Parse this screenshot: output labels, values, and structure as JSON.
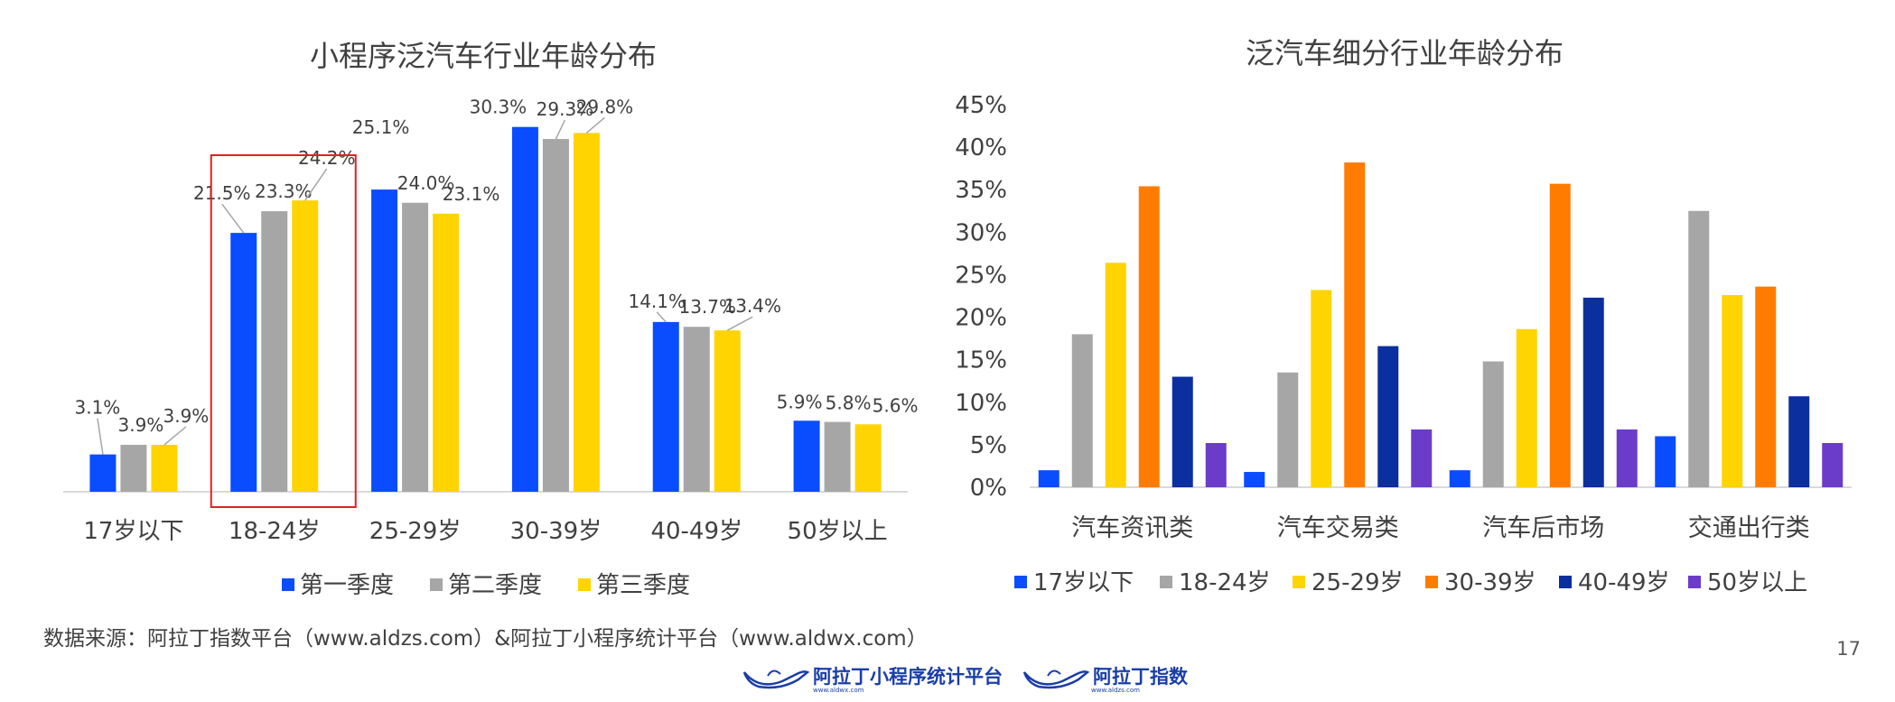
{
  "colors": {
    "blue": "#0a4cff",
    "gray": "#a6a6a6",
    "yellow": "#ffd400",
    "orange": "#ff7c00",
    "navy": "#0b2f9e",
    "purple": "#6b3cc9",
    "highlight": "#e02020",
    "axis": "#d9d9d9",
    "text": "#404040"
  },
  "chart_data": [
    {
      "type": "bar",
      "title": "小程序泛汽车行业年龄分布",
      "categories": [
        "17岁以下",
        "18-24岁",
        "25-29岁",
        "30-39岁",
        "40-49岁",
        "50岁以上"
      ],
      "series": [
        {
          "name": "第一季度",
          "values": [
            3.1,
            21.5,
            25.1,
            30.3,
            14.1,
            5.9
          ],
          "labels": [
            "3.1%",
            "21.5%",
            "25.1%",
            "30.3%",
            "14.1%",
            "5.9%"
          ]
        },
        {
          "name": "第二季度",
          "values": [
            3.9,
            23.3,
            24.0,
            29.3,
            13.7,
            5.8
          ],
          "labels": [
            "3.9%",
            "23.3%",
            "24.0%",
            "29.3%",
            "13.7%",
            "5.8%"
          ]
        },
        {
          "name": "第三季度",
          "values": [
            3.9,
            24.2,
            23.1,
            29.8,
            13.4,
            5.6
          ],
          "labels": [
            "3.9%",
            "24.2%",
            "23.1%",
            "29.8%",
            "13.4%",
            "5.6%"
          ]
        }
      ],
      "ylim": [
        0,
        32
      ],
      "highlight_category": "18-24岁",
      "legend_position": "bottom"
    },
    {
      "type": "bar",
      "title": "泛汽车细分行业年龄分布",
      "categories": [
        "汽车资讯类",
        "汽车交易类",
        "汽车后市场",
        "交通出行类"
      ],
      "series": [
        {
          "name": "17岁以下",
          "values": [
            2,
            1.8,
            2,
            6
          ]
        },
        {
          "name": "18-24岁",
          "values": [
            18,
            13.5,
            14.8,
            32.5
          ]
        },
        {
          "name": "25-29岁",
          "values": [
            26.4,
            23.2,
            18.6,
            22.6
          ]
        },
        {
          "name": "30-39岁",
          "values": [
            35.4,
            38.2,
            35.7,
            23.6
          ]
        },
        {
          "name": "40-49岁",
          "values": [
            13,
            16.6,
            22.3,
            10.7
          ]
        },
        {
          "name": "50岁以上",
          "values": [
            5.2,
            6.8,
            6.8,
            5.2
          ]
        }
      ],
      "ylim": [
        0,
        45
      ],
      "yticks": [
        "0%",
        "5%",
        "10%",
        "15%",
        "20%",
        "25%",
        "30%",
        "35%",
        "40%",
        "45%"
      ],
      "legend_position": "bottom"
    }
  ],
  "footer": {
    "source": "数据来源：阿拉丁指数平台（www.aldzs.com）&阿拉丁小程序统计平台（www.aldwx.com）",
    "page_number": "17",
    "logo1_text": "阿拉丁小程序统计平台",
    "logo1_sub": "www.aldwx.com",
    "logo2_text": "阿拉丁指数",
    "logo2_sub": "www.aldzs.com"
  }
}
